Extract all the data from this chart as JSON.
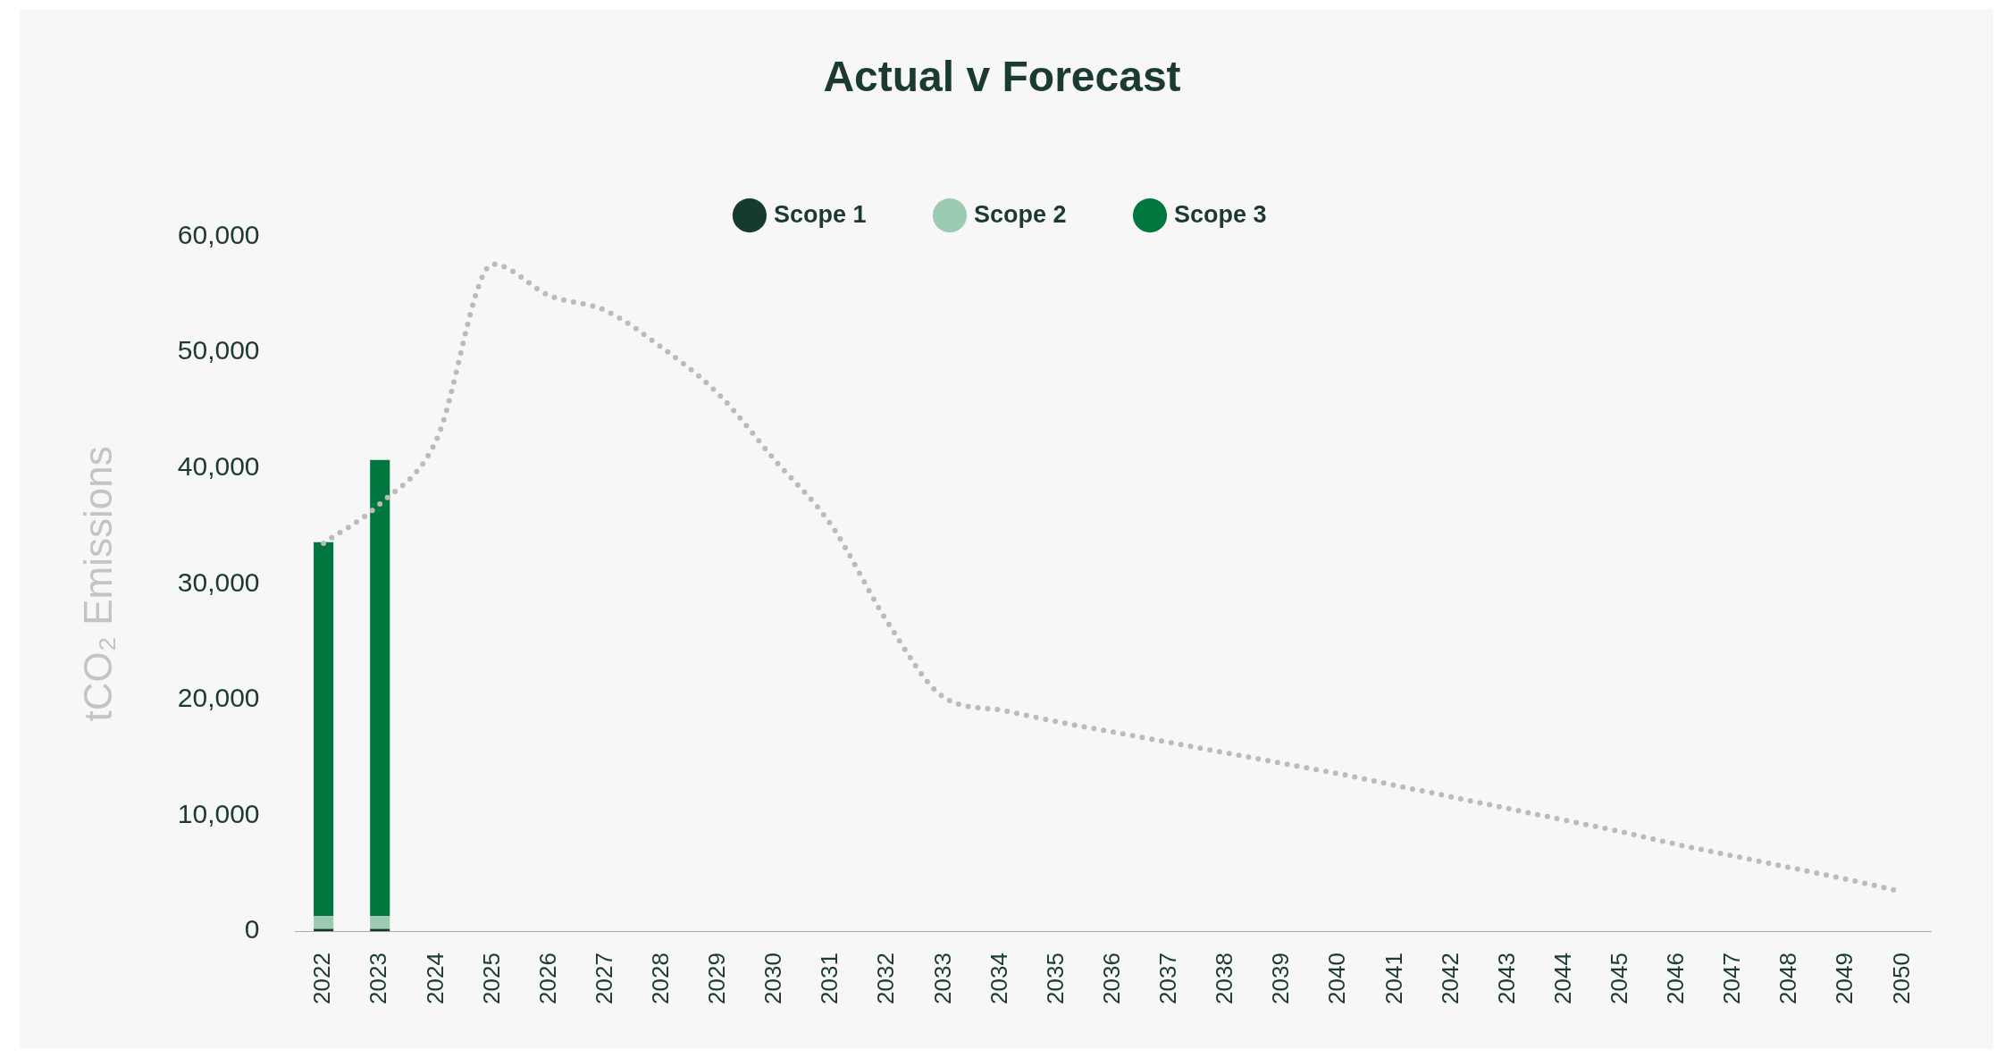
{
  "chart_data": {
    "type": "bar",
    "title": "Actual v Forecast",
    "ylabel": "tCO₂ Emissions",
    "stacked": true,
    "legend": "top",
    "grid": false,
    "categories": [
      "2022",
      "2023",
      "2024",
      "2025",
      "2026",
      "2027",
      "2028",
      "2029",
      "2030",
      "2031",
      "2032",
      "2033",
      "2034",
      "2035",
      "2036",
      "2037",
      "2038",
      "2039",
      "2040",
      "2041",
      "2042",
      "2043",
      "2044",
      "2045",
      "2046",
      "2047",
      "2048",
      "2049",
      "2050"
    ],
    "series": [
      {
        "name": "Scope 1",
        "color": "#173a30",
        "values": [
          200,
          200,
          null,
          null,
          null,
          null,
          null,
          null,
          null,
          null,
          null,
          null,
          null,
          null,
          null,
          null,
          null,
          null,
          null,
          null,
          null,
          null,
          null,
          null,
          null,
          null,
          null,
          null,
          null
        ]
      },
      {
        "name": "Scope 2",
        "color": "#9ccbb3",
        "values": [
          1100,
          1100,
          null,
          null,
          null,
          null,
          null,
          null,
          null,
          null,
          null,
          null,
          null,
          null,
          null,
          null,
          null,
          null,
          null,
          null,
          null,
          null,
          null,
          null,
          null,
          null,
          null,
          null,
          null
        ]
      },
      {
        "name": "Scope 3",
        "color": "#00773f",
        "values": [
          32300,
          39400,
          null,
          null,
          null,
          null,
          null,
          null,
          null,
          null,
          null,
          null,
          null,
          null,
          null,
          null,
          null,
          null,
          null,
          null,
          null,
          null,
          null,
          null,
          null,
          null,
          null,
          null,
          null
        ]
      },
      {
        "type": "line",
        "color": "#bbbbbb",
        "line_style": "dotted",
        "values": [
          33500,
          36900,
          42400,
          57600,
          54900,
          53600,
          50400,
          46400,
          40700,
          35100,
          26700,
          20200,
          19100,
          18100,
          17200,
          16300,
          15400,
          14500,
          13600,
          12600,
          11600,
          10600,
          9600,
          8600,
          7500,
          6500,
          5500,
          4500,
          3400
        ]
      }
    ],
    "ylim": [
      0,
      60000
    ],
    "yticks": [
      {
        "value": 0,
        "label": "0"
      },
      {
        "value": 10000,
        "label": "10,000"
      },
      {
        "value": 20000,
        "label": "20,000"
      },
      {
        "value": 30000,
        "label": "30,000"
      },
      {
        "value": 40000,
        "label": "40,000"
      },
      {
        "value": 50000,
        "label": "50,000"
      },
      {
        "value": 60000,
        "label": "60,000"
      }
    ]
  }
}
